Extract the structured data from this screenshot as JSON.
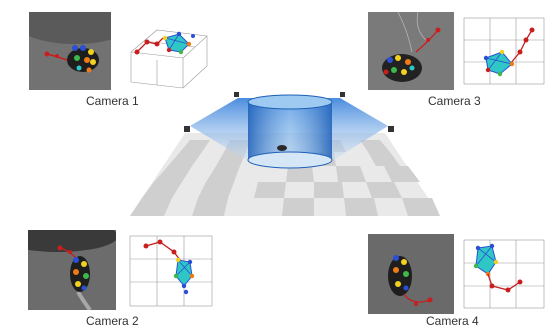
{
  "figure": {
    "cameras": [
      {
        "id": "camera-1",
        "label": "Camera 1"
      },
      {
        "id": "camera-2",
        "label": "Camera 2"
      },
      {
        "id": "camera-3",
        "label": "Camera 3"
      },
      {
        "id": "camera-4",
        "label": "Camera 4"
      }
    ],
    "colors": {
      "arena_blue": "#2a78d8",
      "arena_light": "#cfe3f7",
      "skeleton_red": "#c81e1e",
      "skeleton_cyan": "#2fc6c6",
      "skeleton_blue": "#2a4fd6",
      "marker_yellow": "#f2d21e",
      "marker_orange": "#ef7a16",
      "marker_green": "#3db84a",
      "mouse_body": "#1e1e1e",
      "photo_bg": "#6f6f6f",
      "floor_light": "#e6e6e6",
      "floor_dark": "#c8c8c8"
    }
  }
}
